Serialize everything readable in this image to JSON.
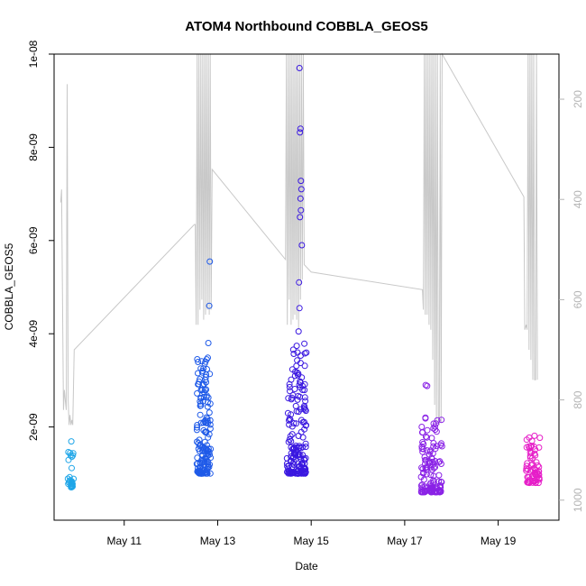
{
  "chart_data": {
    "type": "scatter",
    "title": "ATOM4 Northbound COBBLA_GEOS5",
    "xlabel": "Date",
    "ylabel": "COBBLA_GEOS5",
    "x_ticks": [
      "May 11",
      "May 13",
      "May 15",
      "May 17",
      "May 19"
    ],
    "x_tick_days": [
      11,
      13,
      15,
      17,
      19
    ],
    "xlim_days": [
      9.5,
      20.3
    ],
    "ylim": [
      0,
      1e-08
    ],
    "y_ticks": [
      "2e-09",
      "4e-09",
      "6e-09",
      "8e-09",
      "1e-08"
    ],
    "y_tick_values": [
      2e-09,
      4e-09,
      6e-09,
      8e-09,
      1e-08
    ],
    "y2_ticks": [
      "200",
      "400",
      "600",
      "800",
      "1000"
    ],
    "y2_tick_values": [
      200,
      400,
      600,
      800,
      1000
    ],
    "y2lim": [
      1040,
      110
    ],
    "y2_color": "#b4b4b4",
    "point_color_scale": [
      "#1fa6e8",
      "#1f5ae8",
      "#3a18e0",
      "#8a22e6",
      "#e61ec8"
    ],
    "clusters": [
      {
        "day_start": 9.78,
        "day_end": 9.92,
        "y_min": 7e-10,
        "y_max": 1.7e-09,
        "n": 28,
        "color": "#1fa6e8"
      },
      {
        "day_start": 12.55,
        "day_end": 12.85,
        "y_min": 1e-09,
        "y_max": 3.5e-09,
        "n": 150,
        "color": "#1f5ae8"
      },
      {
        "day_start": 14.48,
        "day_end": 14.9,
        "y_min": 1e-09,
        "y_max": 3.8e-09,
        "n": 170,
        "color": "#3a18e0"
      },
      {
        "day_start": 17.35,
        "day_end": 17.8,
        "y_min": 6e-10,
        "y_max": 2.3e-09,
        "n": 130,
        "color": "#8a22e6"
      },
      {
        "day_start": 19.6,
        "day_end": 19.9,
        "y_min": 8e-10,
        "y_max": 1.9e-09,
        "n": 70,
        "color": "#e61ec8"
      }
    ],
    "outliers": [
      {
        "day": 12.68,
        "y": 2.9e-09,
        "color": "#1f5ae8"
      },
      {
        "day": 12.8,
        "y": 3.8e-09,
        "color": "#1f5ae8"
      },
      {
        "day": 12.82,
        "y": 4.6e-09,
        "color": "#1f5ae8"
      },
      {
        "day": 12.83,
        "y": 5.55e-09,
        "color": "#1f5ae8"
      },
      {
        "day": 14.75,
        "y": 9.7e-09,
        "color": "#3a18e0"
      },
      {
        "day": 14.77,
        "y": 8.4e-09,
        "color": "#3a18e0"
      },
      {
        "day": 14.76,
        "y": 8.32e-09,
        "color": "#3a18e0"
      },
      {
        "day": 14.78,
        "y": 7.28e-09,
        "color": "#3a18e0"
      },
      {
        "day": 14.79,
        "y": 7.1e-09,
        "color": "#3a18e0"
      },
      {
        "day": 14.77,
        "y": 6.9e-09,
        "color": "#3a18e0"
      },
      {
        "day": 14.78,
        "y": 6.65e-09,
        "color": "#3a18e0"
      },
      {
        "day": 14.76,
        "y": 6.5e-09,
        "color": "#3a18e0"
      },
      {
        "day": 14.8,
        "y": 5.9e-09,
        "color": "#3a18e0"
      },
      {
        "day": 14.74,
        "y": 5.1e-09,
        "color": "#3a18e0"
      },
      {
        "day": 14.75,
        "y": 4.55e-09,
        "color": "#3a18e0"
      },
      {
        "day": 14.73,
        "y": 4.05e-09,
        "color": "#3a18e0"
      },
      {
        "day": 17.45,
        "y": 2.9e-09,
        "color": "#8a22e6"
      },
      {
        "day": 17.48,
        "y": 2.88e-09,
        "color": "#8a22e6"
      }
    ],
    "pressure_track": [
      [
        9.64,
        406
      ],
      [
        9.66,
        380
      ],
      [
        9.7,
        820
      ],
      [
        9.72,
        780
      ],
      [
        9.74,
        800
      ],
      [
        9.76,
        820
      ],
      [
        9.78,
        170
      ],
      [
        9.8,
        800
      ],
      [
        9.82,
        850
      ],
      [
        9.84,
        830
      ],
      [
        9.86,
        850
      ],
      [
        9.88,
        840
      ],
      [
        9.9,
        850
      ],
      [
        9.93,
        700
      ],
      [
        12.5,
        450
      ],
      [
        12.52,
        450
      ],
      [
        12.54,
        650
      ],
      [
        12.56,
        110
      ],
      [
        12.58,
        650
      ],
      [
        12.6,
        110
      ],
      [
        12.62,
        620
      ],
      [
        12.64,
        110
      ],
      [
        12.66,
        600
      ],
      [
        12.68,
        110
      ],
      [
        12.7,
        640
      ],
      [
        12.72,
        110
      ],
      [
        12.74,
        630
      ],
      [
        12.76,
        110
      ],
      [
        12.78,
        620
      ],
      [
        12.8,
        110
      ],
      [
        12.82,
        630
      ],
      [
        12.84,
        110
      ],
      [
        12.86,
        620
      ],
      [
        12.88,
        340
      ],
      [
        14.45,
        520
      ],
      [
        14.47,
        110
      ],
      [
        14.49,
        650
      ],
      [
        14.51,
        110
      ],
      [
        14.53,
        600
      ],
      [
        14.55,
        110
      ],
      [
        14.57,
        650
      ],
      [
        14.59,
        110
      ],
      [
        14.61,
        640
      ],
      [
        14.63,
        110
      ],
      [
        14.65,
        630
      ],
      [
        14.67,
        110
      ],
      [
        14.69,
        640
      ],
      [
        14.71,
        110
      ],
      [
        14.73,
        660
      ],
      [
        14.75,
        110
      ],
      [
        14.77,
        600
      ],
      [
        14.79,
        110
      ],
      [
        14.81,
        560
      ],
      [
        14.83,
        110
      ],
      [
        14.85,
        530
      ],
      [
        15.0,
        545
      ],
      [
        17.38,
        580
      ],
      [
        17.4,
        620
      ],
      [
        17.42,
        110
      ],
      [
        17.44,
        630
      ],
      [
        17.46,
        110
      ],
      [
        17.48,
        630
      ],
      [
        17.5,
        110
      ],
      [
        17.52,
        650
      ],
      [
        17.54,
        110
      ],
      [
        17.56,
        660
      ],
      [
        17.58,
        110
      ],
      [
        17.6,
        720
      ],
      [
        17.62,
        110
      ],
      [
        17.64,
        810
      ],
      [
        17.66,
        110
      ],
      [
        17.68,
        850
      ],
      [
        17.7,
        110
      ],
      [
        17.72,
        830
      ],
      [
        17.74,
        850
      ],
      [
        17.76,
        110
      ],
      [
        17.78,
        845
      ],
      [
        17.8,
        110
      ],
      [
        19.55,
        395
      ],
      [
        19.57,
        660
      ],
      [
        19.6,
        650
      ],
      [
        19.62,
        660
      ],
      [
        19.64,
        110
      ],
      [
        19.66,
        700
      ],
      [
        19.68,
        110
      ],
      [
        19.7,
        720
      ],
      [
        19.72,
        110
      ],
      [
        19.74,
        760
      ],
      [
        19.76,
        110
      ],
      [
        19.78,
        760
      ],
      [
        19.8,
        760
      ],
      [
        19.82,
        110
      ],
      [
        19.84,
        760
      ]
    ]
  }
}
